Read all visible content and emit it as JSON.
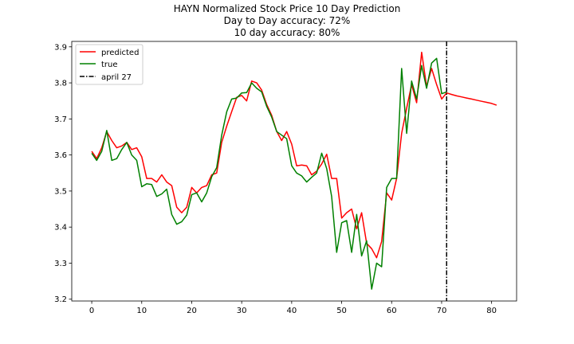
{
  "chart_data": {
    "type": "line",
    "title_lines": [
      "HAYN Normalized Stock Price 10 Day Prediction",
      "Day to Day accuracy: 72%",
      "10 day accuracy: 80%"
    ],
    "xlim": [
      -4,
      85
    ],
    "ylim": [
      3.195,
      3.915
    ],
    "x_ticks": [
      0,
      10,
      20,
      30,
      40,
      50,
      60,
      70,
      80
    ],
    "y_ticks": [
      3.2,
      3.3,
      3.4,
      3.5,
      3.6,
      3.7,
      3.8,
      3.9
    ],
    "y_tick_labels": [
      "3.2",
      "3.3",
      "3.4",
      "3.5",
      "3.6",
      "3.7",
      "3.8",
      "3.9"
    ],
    "legend_position": "upper-left",
    "legend": [
      "predicted",
      "true",
      "april 27"
    ],
    "series": [
      {
        "name": "predicted",
        "color": "#ff0000",
        "x": [
          0,
          1,
          2,
          3,
          4,
          5,
          6,
          7,
          8,
          9,
          10,
          11,
          12,
          13,
          14,
          15,
          16,
          17,
          18,
          19,
          20,
          21,
          22,
          23,
          24,
          25,
          26,
          27,
          28,
          29,
          30,
          31,
          32,
          33,
          34,
          35,
          36,
          37,
          38,
          39,
          40,
          41,
          42,
          43,
          44,
          45,
          46,
          47,
          48,
          49,
          50,
          51,
          52,
          53,
          54,
          55,
          56,
          57,
          58,
          59,
          60,
          61,
          62,
          63,
          64,
          65,
          66,
          67,
          68,
          69,
          70,
          71,
          72,
          73,
          74,
          75,
          76,
          77,
          78,
          79,
          80,
          81
        ],
        "y": [
          3.61,
          3.59,
          3.62,
          3.665,
          3.64,
          3.62,
          3.625,
          3.635,
          3.615,
          3.62,
          3.595,
          3.535,
          3.535,
          3.525,
          3.545,
          3.525,
          3.515,
          3.455,
          3.44,
          3.455,
          3.51,
          3.495,
          3.51,
          3.515,
          3.545,
          3.55,
          3.635,
          3.68,
          3.72,
          3.76,
          3.765,
          3.75,
          3.805,
          3.8,
          3.78,
          3.74,
          3.71,
          3.665,
          3.64,
          3.665,
          3.63,
          3.57,
          3.572,
          3.57,
          3.545,
          3.555,
          3.575,
          3.602,
          3.535,
          3.535,
          3.425,
          3.44,
          3.45,
          3.395,
          3.44,
          3.355,
          3.34,
          3.315,
          3.36,
          3.495,
          3.475,
          3.535,
          3.66,
          3.73,
          3.795,
          3.745,
          3.885,
          3.79,
          3.84,
          3.795,
          3.755,
          3.772,
          3.768,
          3.764,
          3.761,
          3.758,
          3.755,
          3.752,
          3.749,
          3.746,
          3.743,
          3.738
        ]
      },
      {
        "name": "true",
        "color": "#008000",
        "x": [
          0,
          1,
          2,
          3,
          4,
          5,
          6,
          7,
          8,
          9,
          10,
          11,
          12,
          13,
          14,
          15,
          16,
          17,
          18,
          19,
          20,
          21,
          22,
          23,
          24,
          25,
          26,
          27,
          28,
          29,
          30,
          31,
          32,
          33,
          34,
          35,
          36,
          37,
          38,
          39,
          40,
          41,
          42,
          43,
          44,
          45,
          46,
          47,
          48,
          49,
          50,
          51,
          52,
          53,
          54,
          55,
          56,
          57,
          58,
          59,
          60,
          61,
          62,
          63,
          64,
          65,
          66,
          67,
          68,
          69,
          70,
          71
        ],
        "y": [
          3.605,
          3.585,
          3.61,
          3.668,
          3.585,
          3.59,
          3.615,
          3.635,
          3.6,
          3.585,
          3.512,
          3.52,
          3.518,
          3.485,
          3.492,
          3.505,
          3.435,
          3.408,
          3.415,
          3.433,
          3.49,
          3.495,
          3.47,
          3.495,
          3.54,
          3.565,
          3.655,
          3.72,
          3.755,
          3.758,
          3.772,
          3.773,
          3.8,
          3.785,
          3.775,
          3.735,
          3.705,
          3.665,
          3.655,
          3.645,
          3.57,
          3.55,
          3.542,
          3.525,
          3.538,
          3.55,
          3.605,
          3.562,
          3.485,
          3.33,
          3.412,
          3.418,
          3.33,
          3.435,
          3.32,
          3.362,
          3.228,
          3.3,
          3.29,
          3.51,
          3.535,
          3.535,
          3.84,
          3.66,
          3.805,
          3.755,
          3.848,
          3.785,
          3.855,
          3.868,
          3.77,
          3.775
        ]
      }
    ],
    "vline": {
      "x": 71,
      "label": "april 27",
      "color": "#000000",
      "style": "dash-dot"
    }
  }
}
